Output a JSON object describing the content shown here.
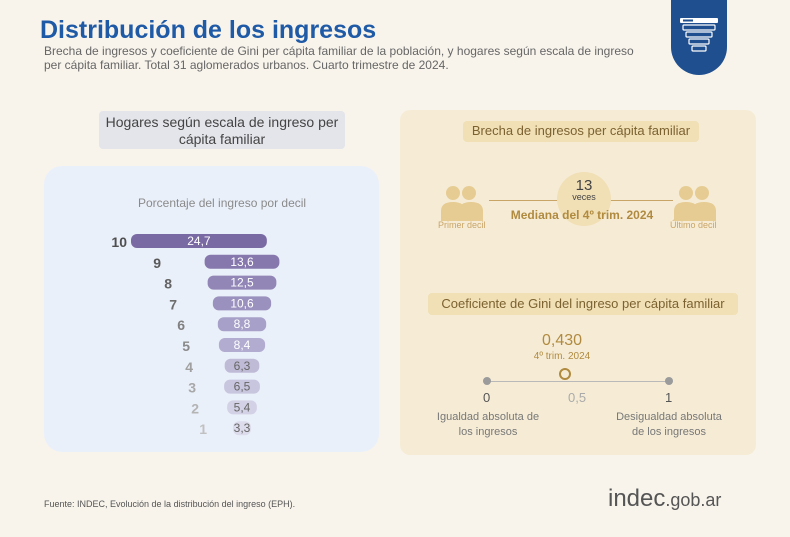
{
  "header": {
    "title": "Distribución de los ingresos",
    "subtitle": "Brecha de ingresos y coeficiente de Gini per cápita familiar de la población, y hogares según escala de ingreso per cápita familiar. Total 31 aglomerados urbanos. Cuarto trimestre de 2024."
  },
  "badge": {
    "icon": "funnel-icon"
  },
  "left": {
    "header": "Hogares según escala de ingreso per cápita familiar",
    "caption": "Porcentaje del ingreso por decil"
  },
  "chart_data": {
    "type": "bar",
    "title": "Porcentaje del ingreso por decil",
    "categories": [
      "10",
      "9",
      "8",
      "7",
      "6",
      "5",
      "4",
      "3",
      "2",
      "1"
    ],
    "values": [
      24.7,
      13.6,
      12.5,
      10.6,
      8.8,
      8.4,
      6.3,
      6.5,
      5.4,
      3.3
    ],
    "value_labels": [
      "24,7",
      "13,6",
      "12,5",
      "10,6",
      "8,8",
      "8,4",
      "6,3",
      "6,5",
      "5,4",
      "3,3"
    ],
    "colors": [
      "#7a6aa3",
      "#8678ad",
      "#9286b7",
      "#9b91be",
      "#a7a0c8",
      "#b2acd0",
      "#bfbbd7",
      "#c8c5de",
      "#d3d1e5",
      "#dddcec"
    ],
    "label_colors": [
      "#4f4f4f",
      "#595959",
      "#636363",
      "#6d6d6d",
      "#808080",
      "#8a8a8a",
      "#a0a0a0",
      "#a8a8a8",
      "#b4b4b4",
      "#c0c0c0"
    ]
  },
  "brecha": {
    "title": "Brecha de ingresos per cápita familiar",
    "value": "13",
    "unit": "veces",
    "caption": "Mediana del 4º trim. 2024",
    "left_label": "Primer decil",
    "right_label": "Último decil",
    "icon": "people-icon",
    "accent": "#e6cc93"
  },
  "gini": {
    "title": "Coeficiente de Gini del ingreso per cápita familiar",
    "value": "0,430",
    "value_num": 0.43,
    "period": "4º trim. 2024",
    "ticks": [
      "0",
      "0,5",
      "1"
    ],
    "left_note": "Igualdad absoluta de los ingresos",
    "right_note": "Desigualdad absoluta de los ingresos",
    "accent": "#b08a3f"
  },
  "footer": {
    "source": "Fuente: INDEC, Evolución de la distribución del ingreso (EPH).",
    "logo_main": "indec",
    "logo_suffix": ".gob.ar"
  }
}
